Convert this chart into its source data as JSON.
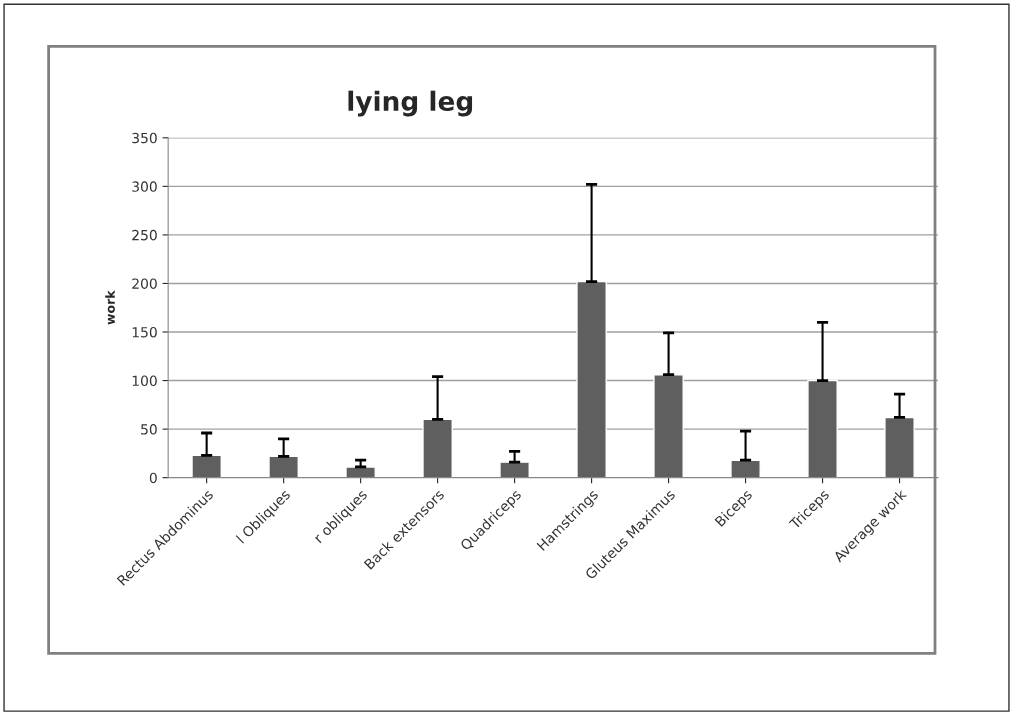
{
  "chart_data": {
    "type": "bar",
    "title": "lying leg",
    "ylabel": "work",
    "categories": [
      "Rectus Abdominus",
      "l Obliques",
      "r obliques",
      "Back extensors",
      "Quadriceps",
      "Hamstrings",
      "Gluteus Maximus",
      "Biceps",
      "Triceps",
      "Average work"
    ],
    "values": [
      23,
      22,
      11,
      60,
      16,
      202,
      106,
      18,
      100,
      62
    ],
    "errors": [
      [
        23,
        46
      ],
      [
        22,
        40
      ],
      [
        11,
        18
      ],
      [
        60,
        104
      ],
      [
        16,
        27
      ],
      [
        202,
        302
      ],
      [
        106,
        149
      ],
      [
        18,
        48
      ],
      [
        100,
        160
      ],
      [
        62,
        86
      ]
    ],
    "color": "#5f5f5f",
    "ylim": [
      0,
      350
    ],
    "yticks": [
      0,
      50,
      100,
      150,
      200,
      250,
      300,
      350
    ],
    "grid": "y"
  }
}
